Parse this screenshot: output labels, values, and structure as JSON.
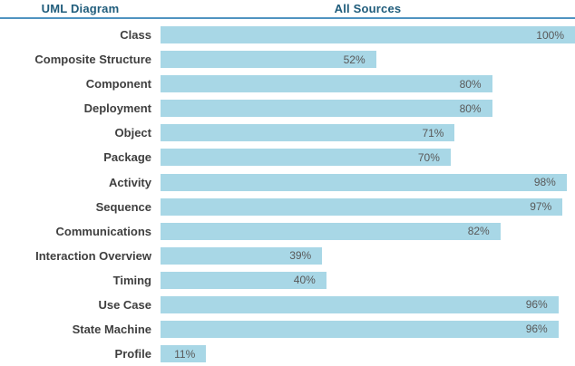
{
  "header": {
    "diagram_col": "UML Diagram",
    "sources_col": "All Sources"
  },
  "colors": {
    "bar_fill": "#a8d7e6",
    "header_text": "#1f5c7b",
    "divider": "#4f93c0",
    "label_text": "#3f3f3f",
    "value_text": "#595959",
    "background": "#ffffff"
  },
  "chart_data": {
    "type": "bar",
    "orientation": "horizontal",
    "title": "All Sources",
    "xlabel": "UML Diagram",
    "ylabel": "",
    "unit": "%",
    "xlim": [
      0,
      100
    ],
    "grid": false,
    "legend": false,
    "value_label_position": "inside-end",
    "categories": [
      "Class",
      "Composite Structure",
      "Component",
      "Deployment",
      "Object",
      "Package",
      "Activity",
      "Sequence",
      "Communications",
      "Interaction Overview",
      "Timing",
      "Use Case",
      "State Machine",
      "Profile"
    ],
    "values": [
      100,
      52,
      80,
      80,
      71,
      70,
      98,
      97,
      82,
      39,
      40,
      96,
      96,
      11
    ]
  }
}
